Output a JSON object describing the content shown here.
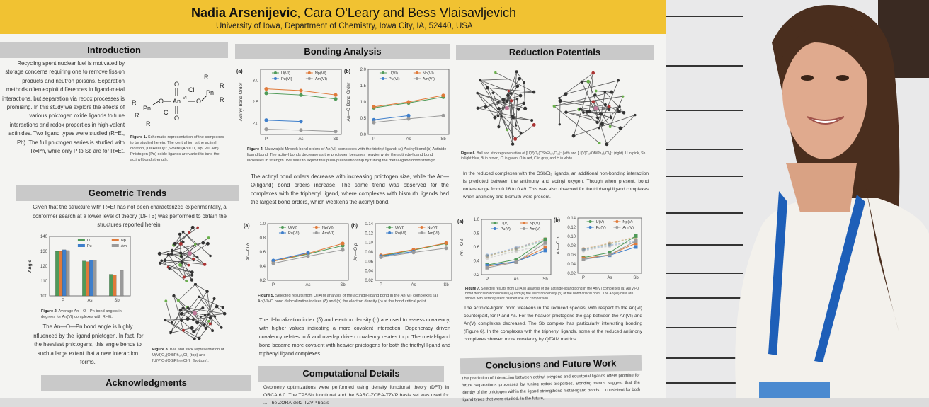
{
  "poster": {
    "authors_lead": "Nadia Arsenijevic",
    "authors_rest": ", Cara O'Leary and Bess Vlaisavljevich",
    "affiliation": "University of Iowa, Department of Chemistry, Iowa City, IA, 52440, USA",
    "introduction": {
      "heading": "Introduction",
      "text": "Recycling spent nuclear fuel is motivated by storage concerns requiring one to remove fission products and neutron poisons. Separation methods often exploit differences in ligand-metal interactions, but separation via redox processes is promising. In this study we explore the effects of various pnictogen oxide ligands to tune interactions and redox properties in high-valent actinides. Two ligand types were studied (R=Et, Ph). The full pnictogen series is studied with R=Ph, while only P to Sb are for R=Et.",
      "fig1_caption_label": "Figure 1.",
      "fig1_caption": " Schematic representation of the complexes to be studied herein. The central ion is the actinyl dication, [O=An=O]²⁺, where (An = U, Np, Pu, Am). Pnictogen (Pn) oxide ligands are varied to tune the actinyl bond strength."
    },
    "geometric": {
      "heading": "Geometric Trends",
      "intro": "Given that the structure with R=Et has not been characterized experimentally, a conformer search at a lower level of theory (DFTB) was performed to obtain the structures reported herein.",
      "fig2_caption_label": "Figure 2.",
      "fig2_caption": " Average An—O—Pn bond angles in degrees for An(VI) complexes with R=Et.",
      "text": "The An—O—Pn bond angle is highly influenced by the ligand pnictogen. In fact, for the heaviest pnictogens, this angle bends to such a large extent that a new interaction forms.",
      "fig3_caption_label": "Figure 3.",
      "fig3_caption": " Ball and stick representation of U(VI)O₂(OBiPh₃)₂Cl₂ (top) and [U(V)O₂(OBiPh₃)₂Cl₂]⁻ (bottom)."
    },
    "acknowledgments": {
      "heading": "Acknowledgments"
    },
    "bonding": {
      "heading": "Bonding Analysis",
      "fig4_caption_label": "Figure 4.",
      "fig4_caption": " Nalewajski-Mrozek bond orders of An(VI) complexes with the triethyl ligand: (a) Actinyl bond (b) Actinide-ligand bond. The actinyl bonds decrease as the pnictogen becomes heavier while the actinide-ligand bond increases in strength. We seek to exploit this push-pull relationship by tuning the metal-ligand bond strength.",
      "text1": "The actinyl bond orders decrease with increasing pnictogen size, while the An—O(ligand) bond orders increase. The same trend was observed for the complexes with the triphenyl ligand, where complexes with bismuth ligands had the largest bond orders, which weakens the actinyl bond.",
      "fig5_caption_label": "Figure 5.",
      "fig5_caption": " Selected results from QTAIM analysis of the actinide-ligand bond in the An(VI) complexes (a) An(VI)-O bond delocalization indices (δ) and (b) the electron density (ρ) at the bond critical point.",
      "text2": "The delocalization index (δ) and electron density (ρ) are used to assess covalency, with higher values indicating a more covalent interaction. Degeneracy driven covalency relates to δ and overlap driven covalency relates to ρ. The metal-ligand bond became more covalent with heavier pnictogens for both the triethyl ligand and triphenyl ligand complexes."
    },
    "computational": {
      "heading": "Computational Details",
      "text": "Geometry optimizations were performed using density functional theory (DFT) in ORCA 6.0. The TPSSh functional and the SARC-ZORA-TZVP basis set was used for ... The ZORA-def2-TZVP basis"
    },
    "reduction": {
      "heading": "Reduction Potentials",
      "fig6_caption_label": "Figure 6.",
      "fig6_caption": " Ball and stick representation of [U(V)O₂(OSbEt₃)₂Cl₂]⁻ (left) and [U(V)O₂(OBiPh₃)₂Cl₂]⁻ (right). U in pink, Sb in light blue, Bi in brown, Cl in green, O in red, C in grey, and H in white.",
      "text1": "In the reduced complexes with the OSbEt₃ ligands, an additional non-bonding interaction is predicted between the antimony and actinyl oxygen. Though when present, bond orders range from 0.16 to 0.49. This was also observed for the triphenyl ligand complexes when antimony and bismuth were present.",
      "fig7_caption_label": "Figure 7.",
      "fig7_caption": " Selected results from QTAIM analysis of the actinide-ligand bond in the An(V) complexes (a) An(V)-O bond delocalization indices (δ) and (b) the electron density (ρ) at the bond critical point. The An(VI) data are shown with a transparent dashed line for comparison.",
      "text2": "The actinide-ligand bond weakens in the reduced species, with respect to the An(VI) counterpart, for P and As. For the heavier pnictogens the gap between the An(VI) and An(V) complexes decreased. The Sb complex has particularly interesting bonding (Figure 6). In the complexes with the triphenyl ligands, some of the reduced antimony complexes showed more covalency by QTAIM metrics."
    },
    "conclusions": {
      "heading": "Conclusions and Future Work",
      "text": "The prediction of interaction between actinyl oxygens and equatorial ligands offers promise for future separations processes by tuning redox properties. Bonding trends suggest that the identity of the pnictogen within the ligand strengthens metal-ligand bonds ... consistent for both ligand types that were studied. In the future,"
    }
  },
  "colors": {
    "U": "#4f9a58",
    "Np": "#e07a3a",
    "Pu": "#3f7fcb",
    "Am": "#9a9a9a",
    "banner": "#f1c232",
    "header": "#c9c9c9"
  },
  "chart_data": [
    {
      "id": "fig2",
      "type": "bar",
      "panel": "",
      "ylabel": "Angle",
      "categories": [
        "P",
        "As",
        "Sb"
      ],
      "ylim": [
        100,
        140
      ],
      "yticks": [
        100,
        110,
        120,
        130,
        140
      ],
      "series": [
        {
          "name": "U",
          "values": [
            130,
            123.5,
            114.5
          ]
        },
        {
          "name": "Np",
          "values": [
            130,
            123,
            114
          ]
        },
        {
          "name": "Pu",
          "values": [
            131,
            124,
            null
          ]
        },
        {
          "name": "Am",
          "values": [
            130.5,
            124,
            117
          ]
        }
      ]
    },
    {
      "id": "fig4a",
      "type": "line",
      "panel": "(a)",
      "ylabel": "Actinyl Bond Order",
      "categories": [
        "P",
        "As",
        "Sb"
      ],
      "ylim": [
        1.75,
        3.25
      ],
      "yticks": [
        2.0,
        2.5,
        3.0
      ],
      "series": [
        {
          "name": "U(VI)",
          "values": [
            2.7,
            2.66,
            2.57
          ]
        },
        {
          "name": "Np(VI)",
          "values": [
            2.8,
            2.76,
            2.66
          ]
        },
        {
          "name": "Pu(VI)",
          "values": [
            2.08,
            2.05,
            null
          ]
        },
        {
          "name": "Am(VI)",
          "values": [
            1.87,
            1.85,
            1.82
          ]
        }
      ]
    },
    {
      "id": "fig4b",
      "type": "line",
      "panel": "(b)",
      "ylabel": "An—O Bond Order",
      "categories": [
        "P",
        "As",
        "Sb"
      ],
      "ylim": [
        0,
        2.0
      ],
      "yticks": [
        0.0,
        0.5,
        1.0,
        1.5,
        2.0
      ],
      "series": [
        {
          "name": "U(VI)",
          "values": [
            0.82,
            0.97,
            1.15
          ]
        },
        {
          "name": "Np(VI)",
          "values": [
            0.85,
            1.0,
            1.2
          ]
        },
        {
          "name": "Pu(VI)",
          "values": [
            0.45,
            0.58,
            null
          ]
        },
        {
          "name": "Am(VI)",
          "values": [
            0.37,
            0.48,
            0.58
          ]
        }
      ]
    },
    {
      "id": "fig5a",
      "type": "line",
      "panel": "(a)",
      "ylabel": "An—O δ",
      "categories": [
        "P",
        "As",
        "Sb"
      ],
      "ylim": [
        0.2,
        1.0
      ],
      "yticks": [
        0.2,
        0.4,
        0.6,
        0.8,
        1.0
      ],
      "series": [
        {
          "name": "U(VI)",
          "values": [
            0.47,
            0.57,
            0.69
          ]
        },
        {
          "name": "Np(VI)",
          "values": [
            0.47,
            0.58,
            0.72
          ]
        },
        {
          "name": "Pu(VI)",
          "values": [
            0.48,
            0.59,
            null
          ]
        },
        {
          "name": "Am(VI)",
          "values": [
            0.44,
            0.54,
            0.63
          ]
        }
      ]
    },
    {
      "id": "fig5b",
      "type": "line",
      "panel": "(b)",
      "ylabel": "An—O ρ",
      "categories": [
        "P",
        "As",
        "Sb"
      ],
      "ylim": [
        0.02,
        0.14
      ],
      "yticks": [
        0.02,
        0.04,
        0.06,
        0.08,
        0.1,
        0.12,
        0.14
      ],
      "series": [
        {
          "name": "U(VI)",
          "values": [
            0.072,
            0.084,
            0.098
          ]
        },
        {
          "name": "Np(VI)",
          "values": [
            0.073,
            0.085,
            0.099
          ]
        },
        {
          "name": "Pu(VI)",
          "values": [
            0.071,
            0.081,
            null
          ]
        },
        {
          "name": "Am(VI)",
          "values": [
            0.069,
            0.079,
            0.088
          ]
        }
      ]
    },
    {
      "id": "fig7a",
      "type": "line",
      "panel": "(a)",
      "ylabel": "An—O δ",
      "categories": [
        "P",
        "As",
        "Sb"
      ],
      "ylim": [
        0.2,
        1.0
      ],
      "yticks": [
        0.2,
        0.4,
        0.6,
        0.8,
        1.0
      ],
      "marker": "square",
      "series": [
        {
          "name": "U(V)",
          "values": [
            0.34,
            0.42,
            0.71
          ]
        },
        {
          "name": "Np(V)",
          "values": [
            0.32,
            0.39,
            0.59
          ]
        },
        {
          "name": "Pu(V)",
          "values": [
            0.33,
            0.39,
            0.55
          ]
        },
        {
          "name": "Am(V)",
          "values": [
            0.3,
            0.38,
            0.66
          ]
        }
      ],
      "comparison": [
        [
          0.47,
          0.57,
          0.69
        ],
        [
          0.47,
          0.58,
          0.72
        ],
        [
          0.48,
          0.59,
          0.7
        ],
        [
          0.44,
          0.54,
          0.63
        ]
      ]
    },
    {
      "id": "fig7b",
      "type": "line",
      "panel": "(b)",
      "ylabel": "An—O ρ",
      "categories": [
        "P",
        "As",
        "Sb"
      ],
      "ylim": [
        0.02,
        0.14
      ],
      "yticks": [
        0.02,
        0.04,
        0.06,
        0.08,
        0.1,
        0.12,
        0.14
      ],
      "marker": "square",
      "series": [
        {
          "name": "U(V)",
          "values": [
            0.054,
            0.065,
            0.101
          ]
        },
        {
          "name": "Np(V)",
          "values": [
            0.052,
            0.06,
            0.085
          ]
        },
        {
          "name": "Pu(V)",
          "values": [
            0.05,
            0.059,
            0.077
          ]
        },
        {
          "name": "Am(V)",
          "values": [
            0.05,
            0.06,
            0.09
          ]
        }
      ],
      "comparison": [
        [
          0.072,
          0.084,
          0.098
        ],
        [
          0.073,
          0.085,
          0.099
        ],
        [
          0.071,
          0.081,
          0.09
        ],
        [
          0.069,
          0.079,
          0.088
        ]
      ]
    }
  ]
}
